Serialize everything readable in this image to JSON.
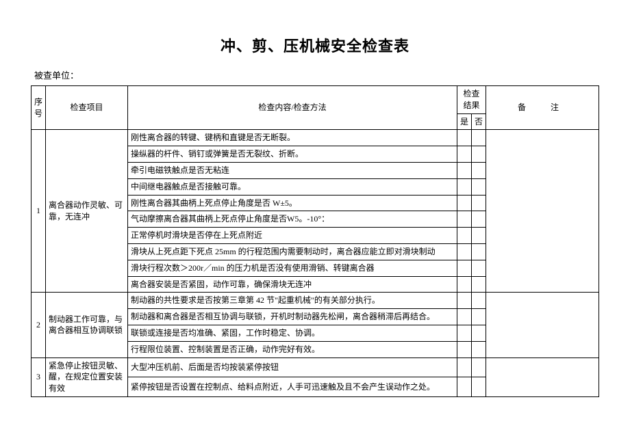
{
  "title": "冲、剪、压机械安全检查表",
  "unit_label": "被查单位：",
  "header": {
    "num": "序号",
    "item": "检查项目",
    "content": "检查内容/检查方法",
    "result": "检查结果",
    "result_yes": "是",
    "result_no": "否",
    "remark": "备　注"
  },
  "rows": [
    {
      "num": "1",
      "item": "离合器动作灵敏、可靠，无连冲",
      "contents": [
        "刚性离合器的转键、键柄和直键是否无断裂。",
        "操纵器的杆件、销钉或弹簧是否无裂纹、折断。",
        "牵引电磁铁触点是否无粘连",
        "中间继电器触点是否接触可靠。",
        "刚性离合器其曲柄上死点停止角度是否 W±5。",
        "气动摩擦离合器其曲柄上死点停止角度是否W5。-10°：",
        "正常停机时滑块是否停在上死点附近",
        "滑块从上死点距下死点 25mm 的行程范围内需要制动时，离合器应能立即对滑块制动",
        "滑块行程次数＞200r／min 的压力机是否没有使用滑销、转键离合器",
        "离合器安装是否紧固，动作可靠，确保滑块无连冲"
      ]
    },
    {
      "num": "2",
      "item": "制动器工作可靠，与离合器相互协调联锁",
      "contents": [
        "制动器的共性要求是否按第三章第 42 节\"起重机械\"的有关部分执行。",
        "制动器和离合器是否相互协调与联锁，开机时制动器先松闸，离合器稍滞后再结合。",
        "联锁或连接是否均准确、紧固，工作时稳定、协调。",
        "行程限位装置、控制装置是否正确，动作完好有效。"
      ]
    },
    {
      "num": "3",
      "item": "紧急停止按钮灵敏、醒，在规定位置安装有效",
      "contents": [
        "大型冲压机前、后面是否均按装紧停按钮",
        "紧停按钮是否设置在控制点、给料点附近，人手可迅速触及且不会产生误动作之处。"
      ]
    }
  ]
}
